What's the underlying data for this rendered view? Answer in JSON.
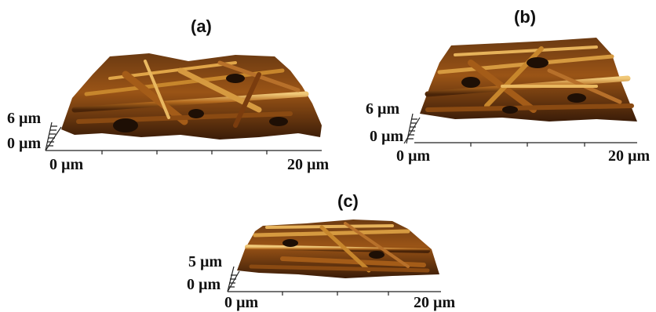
{
  "panels": [
    {
      "label": "(a)",
      "z_top": "6 µm",
      "z_bottom": "0 µm",
      "x_start": "0 µm",
      "x_end": "20 µm"
    },
    {
      "label": "(b)",
      "z_top": "6 µm",
      "z_bottom": "0 µm",
      "x_start": "0 µm",
      "x_end": "20 µm"
    },
    {
      "label": "(c)",
      "z_top": "5 µm",
      "z_bottom": "0 µm",
      "x_start": "0 µm",
      "x_end": "20 µm"
    }
  ],
  "colors": {
    "surface_dark": "#2a1608",
    "surface_mid": "#8a4a12",
    "surface_light": "#d89a3a",
    "highlight": "#f3d18a",
    "axis": "#222222"
  }
}
